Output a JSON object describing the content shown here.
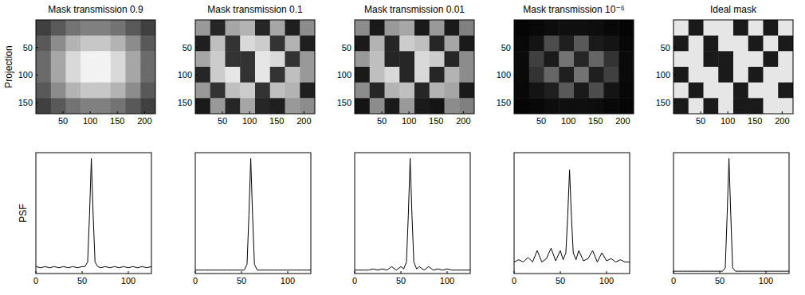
{
  "chart_data": [
    {
      "type": "heatmap",
      "title": "Mask transmission 0.9",
      "ylabel": "Projection",
      "xlim": [
        0,
        220
      ],
      "ylim": [
        170,
        0
      ],
      "xticks": [
        50,
        100,
        150,
        200
      ],
      "yticks": [
        50,
        100,
        150
      ],
      "cells": [
        [
          0.25,
          0.35,
          0.45,
          0.5,
          0.5,
          0.45,
          0.35,
          0.25
        ],
        [
          0.35,
          0.55,
          0.7,
          0.78,
          0.78,
          0.7,
          0.55,
          0.35
        ],
        [
          0.42,
          0.65,
          0.85,
          0.95,
          0.95,
          0.85,
          0.65,
          0.42
        ],
        [
          0.42,
          0.65,
          0.85,
          0.95,
          0.95,
          0.85,
          0.65,
          0.42
        ],
        [
          0.35,
          0.55,
          0.7,
          0.78,
          0.78,
          0.7,
          0.55,
          0.35
        ],
        [
          0.25,
          0.35,
          0.45,
          0.5,
          0.5,
          0.45,
          0.35,
          0.25
        ]
      ]
    },
    {
      "type": "heatmap",
      "title": "Mask transmission 0.1",
      "xlim": [
        0,
        220
      ],
      "ylim": [
        170,
        0
      ],
      "xticks": [
        50,
        100,
        150,
        200
      ],
      "yticks": [
        50,
        100,
        150
      ],
      "cells": [
        [
          0.6,
          0.15,
          0.65,
          0.7,
          0.15,
          0.65,
          0.12,
          0.55
        ],
        [
          0.12,
          0.75,
          0.2,
          0.85,
          0.8,
          0.2,
          0.7,
          0.12
        ],
        [
          0.65,
          0.8,
          0.2,
          0.2,
          0.9,
          0.85,
          0.2,
          0.6
        ],
        [
          0.15,
          0.8,
          0.9,
          0.2,
          0.9,
          0.2,
          0.75,
          0.6
        ],
        [
          0.6,
          0.2,
          0.75,
          0.8,
          0.2,
          0.75,
          0.7,
          0.12
        ],
        [
          0.1,
          0.6,
          0.15,
          0.65,
          0.15,
          0.12,
          0.6,
          0.55
        ]
      ]
    },
    {
      "type": "heatmap",
      "title": "Mask transmission 0.01",
      "xlim": [
        0,
        220
      ],
      "ylim": [
        170,
        0
      ],
      "xticks": [
        50,
        100,
        150,
        200
      ],
      "yticks": [
        50,
        100,
        150
      ],
      "cells": [
        [
          0.55,
          0.1,
          0.6,
          0.65,
          0.1,
          0.6,
          0.1,
          0.5
        ],
        [
          0.1,
          0.7,
          0.15,
          0.8,
          0.75,
          0.15,
          0.65,
          0.1
        ],
        [
          0.6,
          0.75,
          0.15,
          0.15,
          0.85,
          0.8,
          0.15,
          0.55
        ],
        [
          0.1,
          0.75,
          0.85,
          0.15,
          0.85,
          0.15,
          0.7,
          0.55
        ],
        [
          0.55,
          0.15,
          0.7,
          0.75,
          0.15,
          0.7,
          0.65,
          0.1
        ],
        [
          0.08,
          0.55,
          0.1,
          0.6,
          0.1,
          0.08,
          0.55,
          0.5
        ]
      ]
    },
    {
      "type": "heatmap",
      "title": "Mask transmission 10⁻⁶",
      "xlim": [
        0,
        220
      ],
      "ylim": [
        170,
        0
      ],
      "xticks": [
        50,
        100,
        150,
        200
      ],
      "yticks": [
        50,
        100,
        150
      ],
      "cells": [
        [
          0.02,
          0.03,
          0.05,
          0.06,
          0.06,
          0.05,
          0.03,
          0.02
        ],
        [
          0.03,
          0.08,
          0.3,
          0.12,
          0.35,
          0.1,
          0.08,
          0.03
        ],
        [
          0.04,
          0.25,
          0.1,
          0.45,
          0.15,
          0.4,
          0.2,
          0.04
        ],
        [
          0.04,
          0.2,
          0.4,
          0.12,
          0.45,
          0.12,
          0.25,
          0.04
        ],
        [
          0.03,
          0.08,
          0.12,
          0.35,
          0.1,
          0.3,
          0.08,
          0.03
        ],
        [
          0.02,
          0.03,
          0.05,
          0.06,
          0.06,
          0.05,
          0.03,
          0.02
        ]
      ]
    },
    {
      "type": "heatmap",
      "title": "Ideal mask",
      "xlim": [
        0,
        220
      ],
      "ylim": [
        170,
        0
      ],
      "xticks": [
        50,
        100,
        150,
        200
      ],
      "yticks": [
        50,
        100,
        150
      ],
      "cells": [
        [
          0.9,
          0.1,
          0.9,
          0.9,
          0.1,
          0.9,
          0.1,
          0.9
        ],
        [
          0.1,
          0.9,
          0.1,
          0.9,
          0.9,
          0.1,
          0.9,
          0.1
        ],
        [
          0.9,
          0.9,
          0.1,
          0.1,
          0.9,
          0.9,
          0.1,
          0.9
        ],
        [
          0.1,
          0.9,
          0.9,
          0.1,
          0.9,
          0.1,
          0.9,
          0.9
        ],
        [
          0.9,
          0.1,
          0.9,
          0.9,
          0.1,
          0.9,
          0.9,
          0.1
        ],
        [
          0.1,
          0.9,
          0.1,
          0.9,
          0.1,
          0.1,
          0.9,
          0.9
        ]
      ]
    },
    {
      "type": "line",
      "ylabel": "PSF",
      "tick_labels": "x",
      "xlim": [
        0,
        125
      ],
      "ylim": [
        0,
        1.05
      ],
      "xticks": [
        0,
        50,
        100
      ],
      "x": [
        0,
        5,
        10,
        15,
        20,
        25,
        30,
        35,
        40,
        45,
        50,
        53,
        56,
        58,
        60,
        62,
        64,
        67,
        70,
        75,
        80,
        85,
        90,
        95,
        100,
        105,
        110,
        115,
        120,
        125
      ],
      "series": [
        {
          "color": "#000000",
          "values": [
            0.06,
            0.05,
            0.06,
            0.05,
            0.06,
            0.05,
            0.06,
            0.05,
            0.06,
            0.05,
            0.06,
            0.06,
            0.1,
            0.5,
            1.0,
            0.5,
            0.1,
            0.06,
            0.05,
            0.06,
            0.05,
            0.06,
            0.05,
            0.06,
            0.05,
            0.06,
            0.05,
            0.06,
            0.05,
            0.06
          ]
        }
      ]
    },
    {
      "type": "line",
      "tick_labels": "x",
      "xlim": [
        0,
        125
      ],
      "ylim": [
        0,
        1.05
      ],
      "xticks": [
        0,
        50,
        100
      ],
      "x": [
        0,
        5,
        10,
        15,
        20,
        25,
        30,
        35,
        40,
        45,
        50,
        53,
        56,
        58,
        60,
        62,
        64,
        67,
        70,
        75,
        80,
        85,
        90,
        95,
        100,
        105,
        110,
        115,
        120,
        125
      ],
      "series": [
        {
          "color": "#000000",
          "values": [
            0.03,
            0.03,
            0.03,
            0.03,
            0.03,
            0.03,
            0.03,
            0.03,
            0.03,
            0.03,
            0.03,
            0.03,
            0.08,
            0.5,
            1.0,
            0.5,
            0.08,
            0.03,
            0.03,
            0.03,
            0.03,
            0.03,
            0.03,
            0.03,
            0.03,
            0.03,
            0.03,
            0.03,
            0.03,
            0.03
          ]
        }
      ]
    },
    {
      "type": "line",
      "tick_labels": "x",
      "xlim": [
        0,
        125
      ],
      "ylim": [
        0,
        1.05
      ],
      "xticks": [
        0,
        50,
        100
      ],
      "x": [
        0,
        5,
        10,
        15,
        20,
        25,
        30,
        35,
        40,
        45,
        50,
        53,
        56,
        58,
        60,
        62,
        64,
        67,
        70,
        75,
        80,
        85,
        90,
        95,
        100,
        105,
        110,
        115,
        120,
        125
      ],
      "series": [
        {
          "color": "#000000",
          "values": [
            0.03,
            0.03,
            0.03,
            0.03,
            0.04,
            0.03,
            0.04,
            0.03,
            0.06,
            0.03,
            0.06,
            0.04,
            0.1,
            0.5,
            1.0,
            0.5,
            0.1,
            0.04,
            0.06,
            0.03,
            0.06,
            0.03,
            0.04,
            0.03,
            0.04,
            0.03,
            0.03,
            0.03,
            0.03,
            0.03
          ]
        }
      ]
    },
    {
      "type": "line",
      "tick_labels": "x",
      "xlim": [
        0,
        125
      ],
      "ylim": [
        0,
        1.05
      ],
      "xticks": [
        0,
        50,
        100
      ],
      "x": [
        0,
        5,
        10,
        15,
        20,
        25,
        30,
        35,
        40,
        45,
        50,
        53,
        56,
        58,
        60,
        62,
        64,
        67,
        70,
        75,
        80,
        85,
        90,
        95,
        100,
        105,
        110,
        115,
        120,
        125
      ],
      "series": [
        {
          "color": "#000000",
          "values": [
            0.1,
            0.12,
            0.1,
            0.14,
            0.1,
            0.2,
            0.1,
            0.13,
            0.22,
            0.11,
            0.2,
            0.12,
            0.18,
            0.5,
            0.9,
            0.5,
            0.18,
            0.12,
            0.2,
            0.11,
            0.13,
            0.2,
            0.1,
            0.18,
            0.11,
            0.13,
            0.1,
            0.12,
            0.1,
            0.1
          ]
        }
      ]
    },
    {
      "type": "line",
      "tick_labels": "x",
      "xlim": [
        0,
        125
      ],
      "ylim": [
        0,
        1.05
      ],
      "xticks": [
        0,
        50,
        100
      ],
      "x": [
        0,
        5,
        10,
        15,
        20,
        25,
        30,
        35,
        40,
        45,
        50,
        53,
        56,
        58,
        60,
        62,
        64,
        67,
        70,
        75,
        80,
        85,
        90,
        95,
        100,
        105,
        110,
        115,
        120,
        125
      ],
      "series": [
        {
          "color": "#000000",
          "values": [
            0.02,
            0.02,
            0.02,
            0.02,
            0.02,
            0.02,
            0.02,
            0.02,
            0.02,
            0.02,
            0.02,
            0.02,
            0.05,
            0.5,
            1.0,
            0.5,
            0.05,
            0.02,
            0.02,
            0.02,
            0.02,
            0.02,
            0.02,
            0.02,
            0.02,
            0.02,
            0.02,
            0.02,
            0.02,
            0.02
          ]
        }
      ]
    }
  ]
}
